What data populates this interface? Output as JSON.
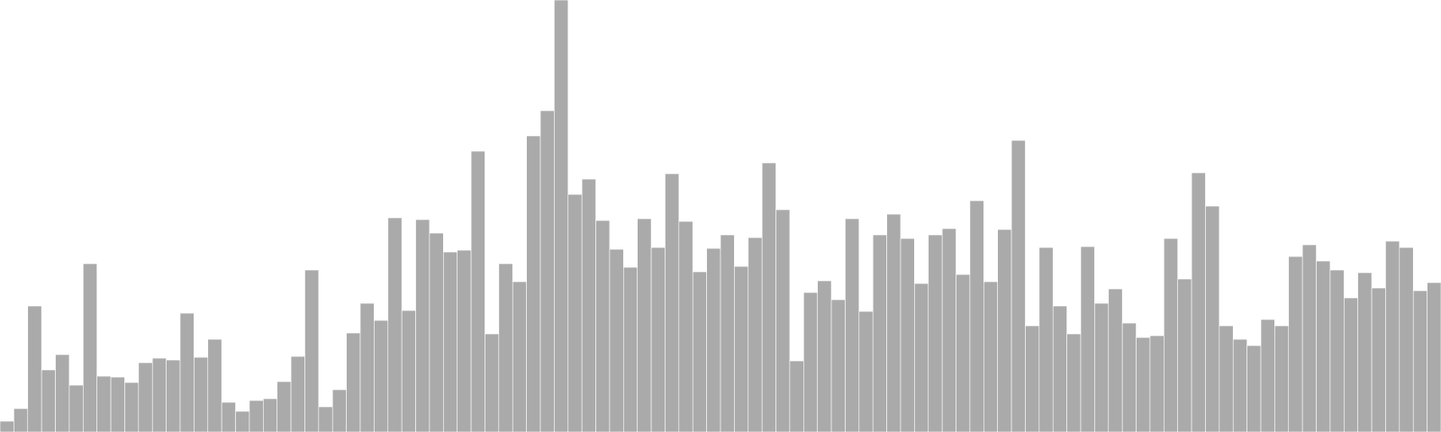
{
  "chart_data": {
    "type": "bar",
    "title": "",
    "xlabel": "",
    "ylabel": "",
    "ylim": [
      0,
      480
    ],
    "grid": false,
    "legend": "none",
    "colors": {
      "bar_fill": "#aaaaaa",
      "bar_edge": "#ffffff",
      "background": "#ffffff"
    },
    "values": [
      12,
      26,
      140,
      69,
      86,
      52,
      187,
      62,
      61,
      55,
      77,
      82,
      80,
      132,
      83,
      103,
      33,
      23,
      35,
      37,
      56,
      84,
      180,
      28,
      47,
      110,
      143,
      124,
      238,
      135,
      236,
      221,
      200,
      202,
      312,
      109,
      187,
      167,
      329,
      357,
      480,
      264,
      281,
      235,
      203,
      183,
      237,
      205,
      287,
      234,
      178,
      204,
      219,
      184,
      216,
      299,
      247,
      79,
      155,
      168,
      147,
      237,
      134,
      219,
      242,
      215,
      165,
      219,
      226,
      175,
      257,
      167,
      225,
      324,
      118,
      205,
      140,
      109,
      206,
      143,
      159,
      121,
      105,
      107,
      215,
      170,
      288,
      251,
      118,
      103,
      96,
      125,
      118,
      195,
      208,
      190,
      180,
      149,
      177,
      160,
      212,
      205,
      157,
      166
    ]
  }
}
